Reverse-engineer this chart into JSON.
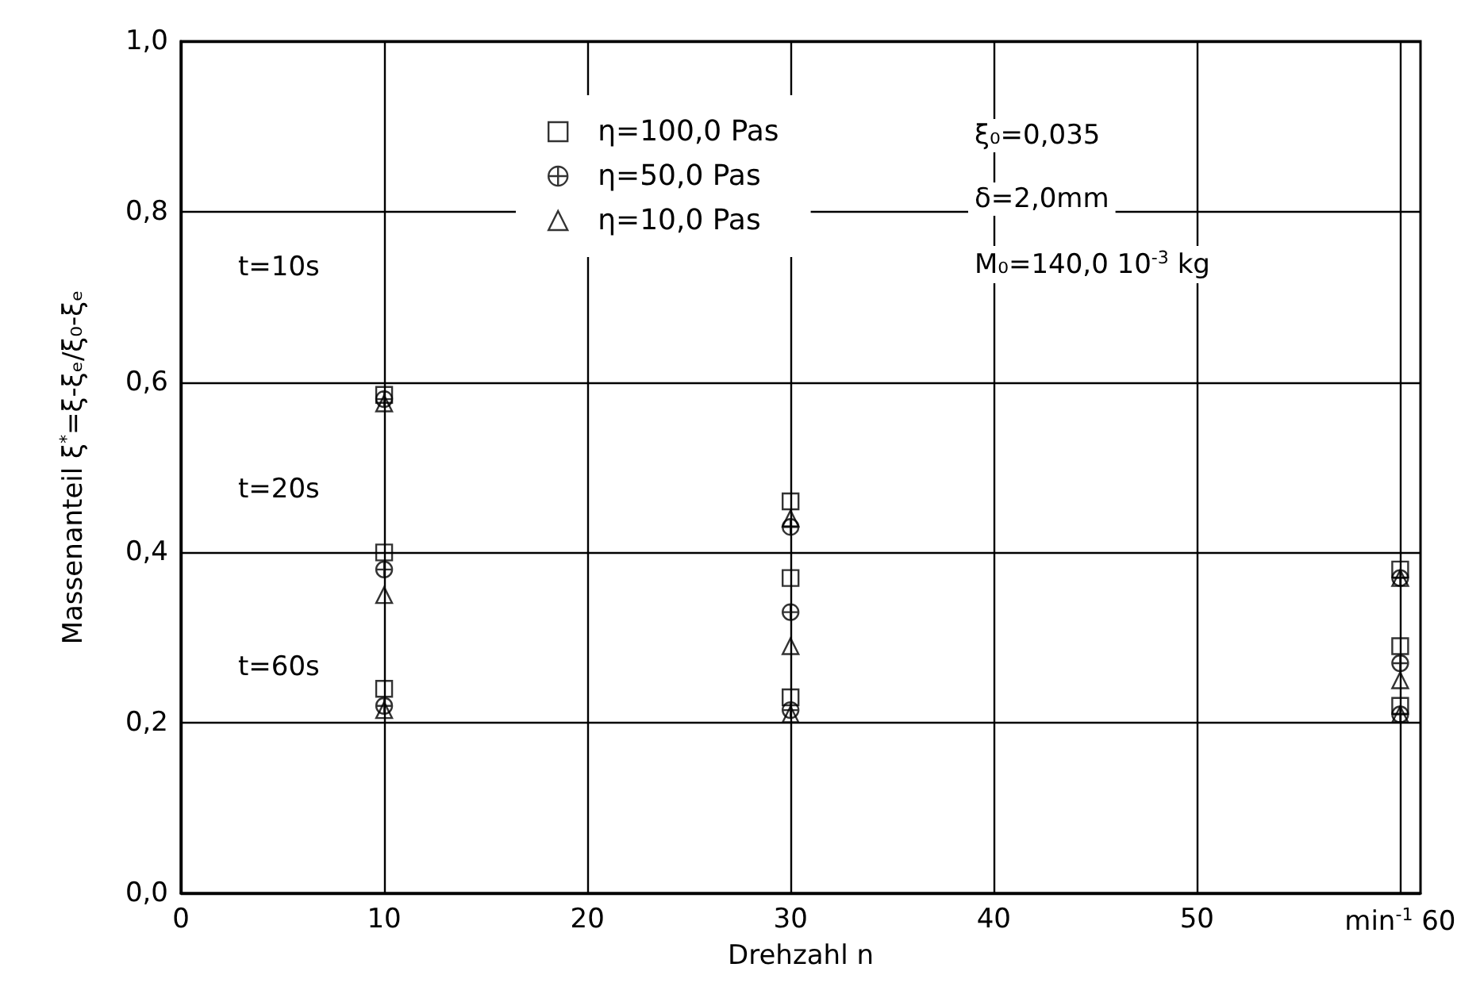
{
  "chart_data": {
    "type": "scatter",
    "xlabel": "Drehzahl n",
    "ylabel": "Massenanteil ξ$^{*}$=ξ-ξₑ/ξ₀-ξₑ",
    "x": [
      10,
      10,
      10,
      30,
      30,
      30,
      60,
      60,
      60
    ],
    "series": [
      {
        "name": "η=100,0 Pas",
        "color": "#000000",
        "marker": "square",
        "values": [
          0.585,
          0.4,
          0.24,
          0.46,
          0.37,
          0.23,
          0.38,
          0.29,
          0.22
        ]
      },
      {
        "name": "η=50,0 Pas",
        "color": "#000000",
        "marker": "cross",
        "values": [
          0.58,
          0.38,
          0.22,
          0.43,
          0.33,
          0.215,
          0.37,
          0.27,
          0.21
        ]
      },
      {
        "name": "η=10,0 Pas",
        "color": "#000000",
        "marker": "triangle",
        "values": [
          0.575,
          0.35,
          0.215,
          0.44,
          0.29,
          0.21,
          0.37,
          0.25,
          0.21
        ]
      }
    ],
    "xlim": [
      0,
      61
    ],
    "xticks": [
      0,
      10,
      20,
      30,
      40,
      50,
      {
        "value": 60,
        "label": "min$^{-1}$ 60"
      }
    ],
    "ylim": [
      0,
      1
    ],
    "yticks": [
      {
        "value": 0,
        "label": "0,0"
      },
      {
        "value": 0.2,
        "label": "0,2"
      },
      {
        "value": 0.4,
        "label": "0,4"
      },
      {
        "value": 0.6,
        "label": "0,6"
      },
      {
        "value": 0.8,
        "label": "0,8"
      },
      {
        "value": 1,
        "label": "1,0"
      }
    ],
    "annotations": [
      "t=10s",
      "t=20s",
      "t=60s",
      "ξ₀=0,035",
      "δ=2,0mm",
      "M₀=140,0 10$^{-3}$ kg"
    ],
    "grid": true,
    "legend": "top"
  }
}
